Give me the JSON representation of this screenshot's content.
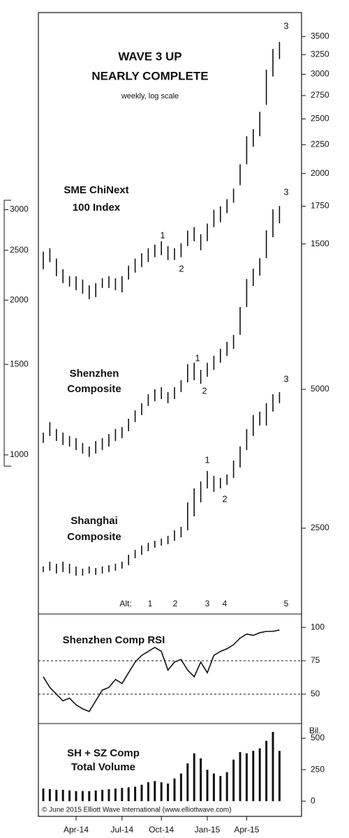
{
  "chart_data": [
    {
      "type": "range_bar",
      "title": [
        "WAVE 3 UP",
        "NEARLY COMPLETE"
      ],
      "subtitle": "weekly, log scale",
      "log_scale": true,
      "color": "#111111",
      "series": [
        {
          "name": [
            "SME ChiNext",
            "100 Index"
          ],
          "high": [
            1454,
            1474,
            1413,
            1353,
            1315,
            1315,
            1297,
            1267,
            1278,
            1304,
            1315,
            1304,
            1315,
            1373,
            1413,
            1445,
            1474,
            1496,
            1517,
            1487,
            1474,
            1504,
            1584,
            1607,
            1561,
            1630,
            1725,
            1750,
            1801,
            1880,
            2077,
            2329,
            2397,
            2574,
            3057,
            3328,
            3425
          ],
          "low": [
            1353,
            1393,
            1315,
            1278,
            1260,
            1242,
            1224,
            1197,
            1207,
            1253,
            1253,
            1242,
            1231,
            1297,
            1334,
            1365,
            1393,
            1421,
            1433,
            1405,
            1405,
            1421,
            1487,
            1517,
            1462,
            1517,
            1607,
            1639,
            1701,
            1775,
            1907,
            2077,
            2231,
            2329,
            2648,
            2972,
            3192
          ],
          "ylim": [
            1210,
            3860
          ],
          "yticks": [
            1500,
            1750,
            2000,
            2250,
            2500,
            2750,
            3000,
            3250,
            3500
          ]
        },
        {
          "name": [
            "Shenzhen",
            "Composite"
          ],
          "high": [
            1105,
            1158,
            1123,
            1105,
            1088,
            1078,
            1055,
            1038,
            1064,
            1078,
            1098,
            1123,
            1133,
            1176,
            1221,
            1260,
            1312,
            1342,
            1354,
            1325,
            1354,
            1397,
            1501,
            1511,
            1464,
            1511,
            1559,
            1608,
            1659,
            1712,
            1940,
            2198,
            2303,
            2414,
            2735,
            3004,
            3051
          ],
          "low": [
            1055,
            1088,
            1064,
            1045,
            1038,
            1022,
            1006,
            991,
            1006,
            1022,
            1038,
            1064,
            1078,
            1112,
            1158,
            1195,
            1245,
            1272,
            1284,
            1260,
            1284,
            1325,
            1384,
            1397,
            1375,
            1419,
            1464,
            1511,
            1559,
            1608,
            1712,
            1940,
            2130,
            2233,
            2414,
            2651,
            2822
          ],
          "ylim": [
            951,
            3129
          ],
          "yticks": [
            1000,
            1500,
            2000,
            2500,
            3000
          ]
        },
        {
          "name": [
            "Shanghai",
            "Composite"
          ],
          "high": [
            2065,
            2115,
            2093,
            2115,
            2093,
            2065,
            2043,
            2065,
            2050,
            2065,
            2079,
            2093,
            2115,
            2190,
            2244,
            2292,
            2324,
            2348,
            2373,
            2406,
            2474,
            2518,
            2844,
            3049,
            3157,
            3327,
            3246,
            3213,
            3269,
            3506,
            3759,
            4101,
            4397,
            4474,
            4665,
            4879,
            4930
          ],
          "low": [
            2008,
            2022,
            1994,
            2008,
            1994,
            1973,
            1973,
            1994,
            1980,
            1994,
            2008,
            2022,
            2043,
            2079,
            2152,
            2190,
            2229,
            2268,
            2292,
            2308,
            2348,
            2389,
            2474,
            2652,
            2844,
            3049,
            2997,
            3049,
            3103,
            3213,
            3385,
            3693,
            3960,
            4173,
            4173,
            4474,
            4665
          ],
          "ylim": [
            1840,
            7540
          ],
          "yticks": [
            2500,
            5000
          ]
        }
      ],
      "annotations": [
        "3",
        "1",
        "2",
        "3",
        "1",
        "2",
        "3",
        "1",
        "2"
      ],
      "alt_label": "Alt:",
      "alt_waves": [
        "1",
        "2",
        "3",
        "4",
        "5"
      ]
    },
    {
      "type": "line",
      "title": "Shenzhen Comp RSI",
      "color": "#111111",
      "values": [
        63,
        55,
        50,
        45,
        47,
        42,
        39,
        37,
        45,
        53,
        55,
        61,
        58,
        66,
        74,
        79,
        82,
        85,
        82,
        68,
        74,
        76,
        68,
        63,
        74,
        66,
        79,
        82,
        84,
        87,
        92,
        95,
        94,
        96,
        97,
        97,
        98
      ],
      "ylim": [
        29,
        110
      ],
      "yticks": [
        50,
        75,
        100
      ],
      "reference_lines": [
        75,
        50
      ]
    },
    {
      "type": "bar",
      "title": [
        "SH + SZ Comp",
        "Total Volume"
      ],
      "unit_label": "Bil.",
      "color": "#111111",
      "values": [
        100,
        95,
        90,
        90,
        85,
        80,
        80,
        80,
        85,
        90,
        95,
        100,
        105,
        110,
        115,
        130,
        150,
        160,
        150,
        140,
        180,
        220,
        300,
        380,
        340,
        250,
        220,
        200,
        230,
        330,
        390,
        380,
        400,
        420,
        480,
        550,
        400
      ],
      "ylim": [
        -110,
        600
      ],
      "yticks": [
        0,
        250,
        500
      ],
      "categories": [
        null,
        null,
        null,
        null,
        null,
        "Apr-14",
        null,
        null,
        null,
        null,
        null,
        null,
        "Jul-14",
        null,
        null,
        null,
        null,
        null,
        "Oct-14",
        null,
        null,
        null,
        null,
        null,
        null,
        "Jan-15",
        null,
        null,
        null,
        null,
        null,
        "Apr-15",
        null,
        null,
        null,
        null,
        null
      ],
      "copyright": "© June 2015 Elliott Wave International (www.elliottwave.com)"
    }
  ]
}
